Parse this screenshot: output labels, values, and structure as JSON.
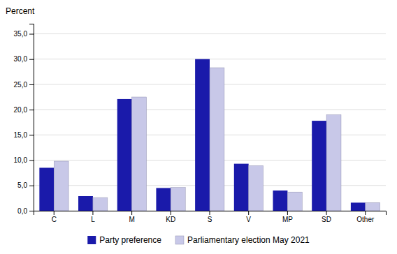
{
  "chart_data": {
    "type": "bar",
    "ylabel": "Percent",
    "categories": [
      "C",
      "L",
      "M",
      "KD",
      "S",
      "V",
      "MP",
      "SD",
      "Other"
    ],
    "series": [
      {
        "name": "Party preference",
        "color": "#1a1aaa",
        "values": [
          8.5,
          2.9,
          22.1,
          4.5,
          30.0,
          9.3,
          4.0,
          17.8,
          1.6
        ]
      },
      {
        "name": "Parliamentary election May 2021",
        "color": "#c8c8e8",
        "values": [
          9.8,
          2.6,
          22.5,
          4.6,
          28.3,
          8.9,
          3.7,
          19.0,
          1.6
        ]
      }
    ],
    "ylim": [
      0,
      37
    ],
    "yticks": [
      {
        "value": 0.0,
        "label": "0,0"
      },
      {
        "value": 5.0,
        "label": "5,0"
      },
      {
        "value": 10.0,
        "label": "10,0"
      },
      {
        "value": 15.0,
        "label": "15,0"
      },
      {
        "value": 20.0,
        "label": "20,0"
      },
      {
        "value": 25.0,
        "label": "25,0"
      },
      {
        "value": 30.0,
        "label": "30,0"
      },
      {
        "value": 35.0,
        "label": "35,0"
      }
    ],
    "grid": true,
    "legend": "bottom"
  }
}
